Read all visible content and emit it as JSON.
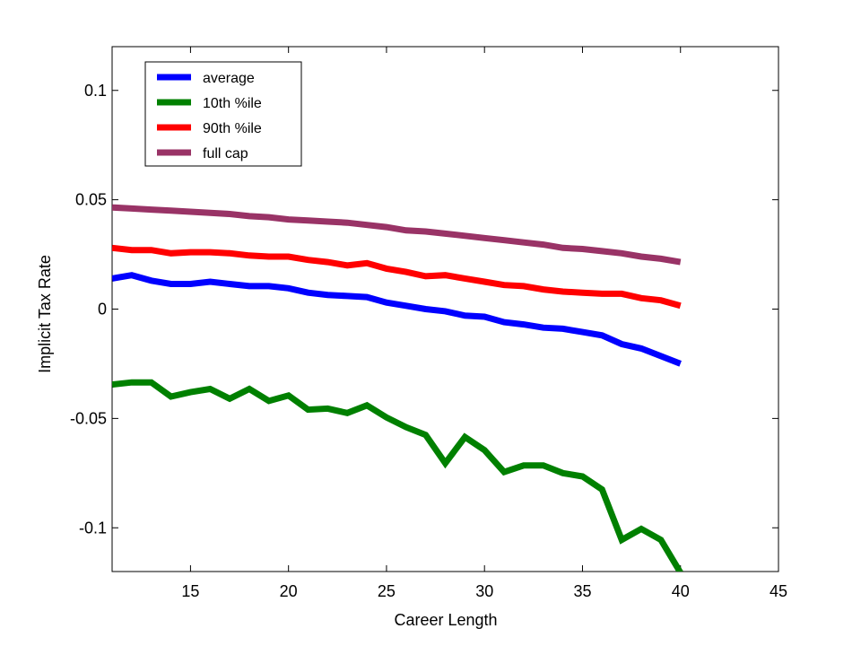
{
  "chart_data": {
    "type": "line",
    "title": "",
    "xlabel": "Career Length",
    "ylabel": "Implicit Tax Rate",
    "xlim": [
      11,
      45
    ],
    "ylim": [
      -0.12,
      0.12
    ],
    "xticks": [
      15,
      20,
      25,
      30,
      35,
      40,
      45
    ],
    "xtick_labels": [
      "15",
      "20",
      "25",
      "30",
      "35",
      "40",
      "45"
    ],
    "yticks": [
      0.1,
      0.05,
      0,
      -0.05,
      -0.1
    ],
    "ytick_labels": [
      "0.1",
      "0.05",
      "0",
      "-0.05",
      "-0.1"
    ],
    "grid": false,
    "legend_position": "top-left",
    "x": [
      11,
      12,
      13,
      14,
      15,
      16,
      17,
      18,
      19,
      20,
      21,
      22,
      23,
      24,
      25,
      26,
      27,
      28,
      29,
      30,
      31,
      32,
      33,
      34,
      35,
      36,
      37,
      38,
      39,
      40
    ],
    "series": [
      {
        "name": "average",
        "color": "#0000ff",
        "values": [
          0.014,
          0.0155,
          0.013,
          0.0115,
          0.0115,
          0.0125,
          0.0115,
          0.0105,
          0.0105,
          0.0095,
          0.0075,
          0.0065,
          0.006,
          0.0055,
          0.003,
          0.0015,
          0.0,
          -0.001,
          -0.003,
          -0.0035,
          -0.006,
          -0.007,
          -0.0085,
          -0.009,
          -0.0105,
          -0.012,
          -0.016,
          -0.018,
          -0.0215,
          -0.025
        ]
      },
      {
        "name": "10th %ile",
        "color": "#008000",
        "values": [
          -0.0345,
          -0.0335,
          -0.0335,
          -0.04,
          -0.038,
          -0.0365,
          -0.041,
          -0.0365,
          -0.042,
          -0.0395,
          -0.046,
          -0.0455,
          -0.0475,
          -0.044,
          -0.0495,
          -0.054,
          -0.0575,
          -0.0705,
          -0.0585,
          -0.0645,
          -0.0745,
          -0.0715,
          -0.0715,
          -0.075,
          -0.0765,
          -0.0825,
          -0.1055,
          -0.1005,
          -0.1055,
          -0.1205
        ]
      },
      {
        "name": "90th %ile",
        "color": "#ff0000",
        "values": [
          0.028,
          0.027,
          0.027,
          0.0255,
          0.026,
          0.026,
          0.0255,
          0.0245,
          0.024,
          0.024,
          0.0225,
          0.0215,
          0.02,
          0.021,
          0.0185,
          0.017,
          0.015,
          0.0155,
          0.014,
          0.0125,
          0.011,
          0.0105,
          0.009,
          0.008,
          0.0075,
          0.007,
          0.007,
          0.005,
          0.004,
          0.0015
        ]
      },
      {
        "name": "full cap",
        "color": "#993366",
        "values": [
          0.0465,
          0.046,
          0.0455,
          0.045,
          0.0445,
          0.044,
          0.0435,
          0.0425,
          0.042,
          0.041,
          0.0405,
          0.04,
          0.0395,
          0.0385,
          0.0375,
          0.036,
          0.0355,
          0.0345,
          0.0335,
          0.0325,
          0.0315,
          0.0305,
          0.0295,
          0.028,
          0.0275,
          0.0265,
          0.0255,
          0.024,
          0.023,
          0.0215
        ]
      }
    ]
  }
}
